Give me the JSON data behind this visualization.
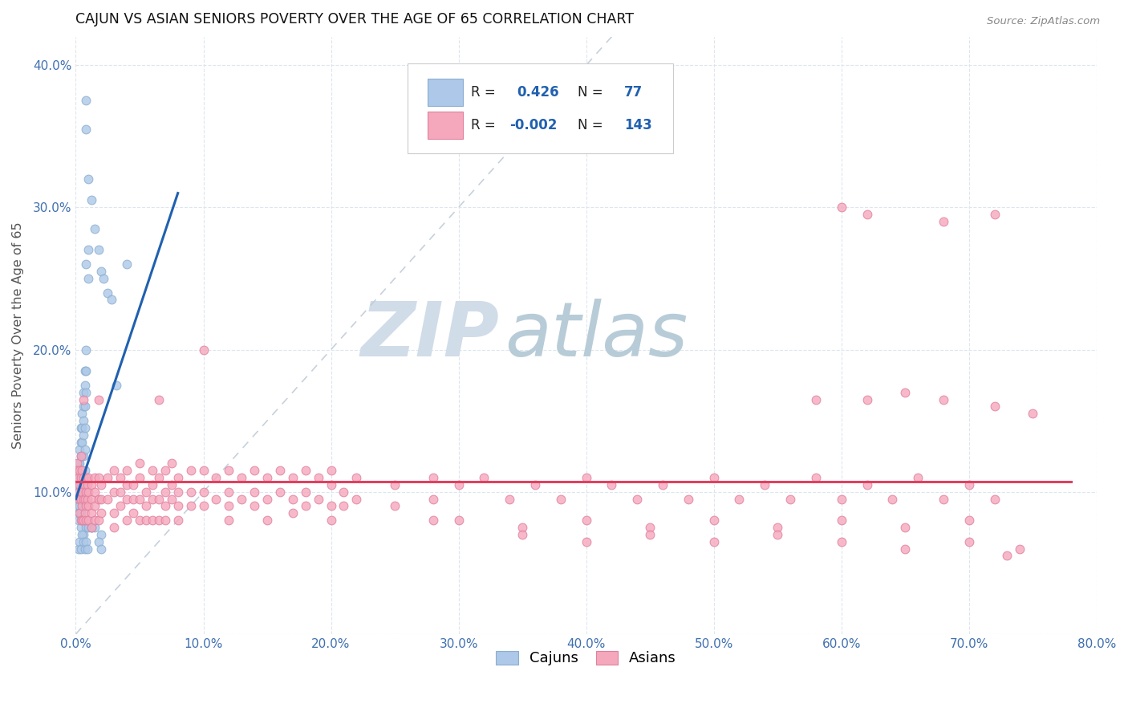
{
  "title": "CAJUN VS ASIAN SENIORS POVERTY OVER THE AGE OF 65 CORRELATION CHART",
  "source": "Source: ZipAtlas.com",
  "ylabel": "Seniors Poverty Over the Age of 65",
  "xlim": [
    0.0,
    0.8
  ],
  "ylim": [
    0.0,
    0.42
  ],
  "xticks": [
    0.0,
    0.1,
    0.2,
    0.3,
    0.4,
    0.5,
    0.6,
    0.7,
    0.8
  ],
  "yticks": [
    0.0,
    0.1,
    0.2,
    0.3,
    0.4
  ],
  "ytick_labels": [
    "",
    "10.0%",
    "20.0%",
    "30.0%",
    "40.0%"
  ],
  "xtick_labels": [
    "0.0%",
    "10.0%",
    "20.0%",
    "30.0%",
    "40.0%",
    "50.0%",
    "60.0%",
    "70.0%",
    "80.0%"
  ],
  "cajun_color": "#adc8e8",
  "asian_color": "#f5a8bc",
  "cajun_line_color": "#2060b0",
  "asian_line_color": "#e04060",
  "diagonal_color": "#c0ccd8",
  "background_color": "#ffffff",
  "grid_color": "#dde6ee",
  "tick_color": "#4070b0",
  "cajun_scatter": [
    [
      0.001,
      0.115
    ],
    [
      0.001,
      0.105
    ],
    [
      0.001,
      0.095
    ],
    [
      0.001,
      0.09
    ],
    [
      0.002,
      0.12
    ],
    [
      0.002,
      0.105
    ],
    [
      0.002,
      0.1
    ],
    [
      0.002,
      0.095
    ],
    [
      0.002,
      0.085
    ],
    [
      0.002,
      0.08
    ],
    [
      0.003,
      0.13
    ],
    [
      0.003,
      0.12
    ],
    [
      0.003,
      0.115
    ],
    [
      0.003,
      0.11
    ],
    [
      0.003,
      0.1
    ],
    [
      0.003,
      0.095
    ],
    [
      0.003,
      0.09
    ],
    [
      0.003,
      0.085
    ],
    [
      0.004,
      0.145
    ],
    [
      0.004,
      0.135
    ],
    [
      0.004,
      0.125
    ],
    [
      0.004,
      0.115
    ],
    [
      0.004,
      0.105
    ],
    [
      0.004,
      0.095
    ],
    [
      0.004,
      0.085
    ],
    [
      0.004,
      0.075
    ],
    [
      0.005,
      0.155
    ],
    [
      0.005,
      0.145
    ],
    [
      0.005,
      0.135
    ],
    [
      0.005,
      0.125
    ],
    [
      0.005,
      0.115
    ],
    [
      0.005,
      0.105
    ],
    [
      0.005,
      0.095
    ],
    [
      0.005,
      0.08
    ],
    [
      0.006,
      0.17
    ],
    [
      0.006,
      0.16
    ],
    [
      0.006,
      0.15
    ],
    [
      0.006,
      0.14
    ],
    [
      0.006,
      0.125
    ],
    [
      0.006,
      0.11
    ],
    [
      0.006,
      0.07
    ],
    [
      0.007,
      0.185
    ],
    [
      0.007,
      0.175
    ],
    [
      0.007,
      0.16
    ],
    [
      0.007,
      0.145
    ],
    [
      0.007,
      0.13
    ],
    [
      0.007,
      0.115
    ],
    [
      0.008,
      0.375
    ],
    [
      0.008,
      0.355
    ],
    [
      0.008,
      0.26
    ],
    [
      0.008,
      0.2
    ],
    [
      0.008,
      0.185
    ],
    [
      0.008,
      0.17
    ],
    [
      0.008,
      0.075
    ],
    [
      0.01,
      0.32
    ],
    [
      0.01,
      0.27
    ],
    [
      0.01,
      0.25
    ],
    [
      0.012,
      0.305
    ],
    [
      0.012,
      0.075
    ],
    [
      0.015,
      0.285
    ],
    [
      0.018,
      0.27
    ],
    [
      0.02,
      0.255
    ],
    [
      0.02,
      0.07
    ],
    [
      0.022,
      0.25
    ],
    [
      0.025,
      0.24
    ],
    [
      0.028,
      0.235
    ],
    [
      0.032,
      0.175
    ],
    [
      0.04,
      0.26
    ],
    [
      0.002,
      0.06
    ],
    [
      0.003,
      0.065
    ],
    [
      0.004,
      0.06
    ],
    [
      0.005,
      0.07
    ],
    [
      0.006,
      0.065
    ],
    [
      0.007,
      0.06
    ],
    [
      0.008,
      0.065
    ],
    [
      0.009,
      0.06
    ],
    [
      0.01,
      0.075
    ],
    [
      0.012,
      0.075
    ],
    [
      0.015,
      0.075
    ],
    [
      0.018,
      0.065
    ],
    [
      0.02,
      0.06
    ]
  ],
  "asian_scatter": [
    [
      0.001,
      0.12
    ],
    [
      0.001,
      0.115
    ],
    [
      0.002,
      0.11
    ],
    [
      0.002,
      0.1
    ],
    [
      0.003,
      0.115
    ],
    [
      0.003,
      0.105
    ],
    [
      0.003,
      0.095
    ],
    [
      0.003,
      0.085
    ],
    [
      0.004,
      0.125
    ],
    [
      0.004,
      0.11
    ],
    [
      0.004,
      0.095
    ],
    [
      0.004,
      0.08
    ],
    [
      0.005,
      0.115
    ],
    [
      0.005,
      0.1
    ],
    [
      0.005,
      0.09
    ],
    [
      0.005,
      0.08
    ],
    [
      0.006,
      0.165
    ],
    [
      0.006,
      0.11
    ],
    [
      0.006,
      0.095
    ],
    [
      0.006,
      0.08
    ],
    [
      0.007,
      0.105
    ],
    [
      0.007,
      0.095
    ],
    [
      0.007,
      0.085
    ],
    [
      0.008,
      0.11
    ],
    [
      0.008,
      0.1
    ],
    [
      0.008,
      0.09
    ],
    [
      0.008,
      0.08
    ],
    [
      0.009,
      0.105
    ],
    [
      0.009,
      0.095
    ],
    [
      0.01,
      0.11
    ],
    [
      0.01,
      0.1
    ],
    [
      0.01,
      0.09
    ],
    [
      0.01,
      0.08
    ],
    [
      0.012,
      0.105
    ],
    [
      0.012,
      0.095
    ],
    [
      0.012,
      0.085
    ],
    [
      0.012,
      0.075
    ],
    [
      0.015,
      0.11
    ],
    [
      0.015,
      0.1
    ],
    [
      0.015,
      0.09
    ],
    [
      0.015,
      0.08
    ],
    [
      0.018,
      0.165
    ],
    [
      0.018,
      0.11
    ],
    [
      0.018,
      0.095
    ],
    [
      0.018,
      0.08
    ],
    [
      0.02,
      0.105
    ],
    [
      0.02,
      0.095
    ],
    [
      0.02,
      0.085
    ],
    [
      0.025,
      0.11
    ],
    [
      0.025,
      0.095
    ],
    [
      0.03,
      0.115
    ],
    [
      0.03,
      0.1
    ],
    [
      0.03,
      0.085
    ],
    [
      0.03,
      0.075
    ],
    [
      0.035,
      0.11
    ],
    [
      0.035,
      0.1
    ],
    [
      0.035,
      0.09
    ],
    [
      0.04,
      0.115
    ],
    [
      0.04,
      0.105
    ],
    [
      0.04,
      0.095
    ],
    [
      0.04,
      0.08
    ],
    [
      0.045,
      0.105
    ],
    [
      0.045,
      0.095
    ],
    [
      0.045,
      0.085
    ],
    [
      0.05,
      0.12
    ],
    [
      0.05,
      0.11
    ],
    [
      0.05,
      0.095
    ],
    [
      0.05,
      0.08
    ],
    [
      0.055,
      0.1
    ],
    [
      0.055,
      0.09
    ],
    [
      0.055,
      0.08
    ],
    [
      0.06,
      0.115
    ],
    [
      0.06,
      0.105
    ],
    [
      0.06,
      0.095
    ],
    [
      0.06,
      0.08
    ],
    [
      0.065,
      0.165
    ],
    [
      0.065,
      0.11
    ],
    [
      0.065,
      0.095
    ],
    [
      0.065,
      0.08
    ],
    [
      0.07,
      0.115
    ],
    [
      0.07,
      0.1
    ],
    [
      0.07,
      0.09
    ],
    [
      0.07,
      0.08
    ],
    [
      0.075,
      0.12
    ],
    [
      0.075,
      0.105
    ],
    [
      0.075,
      0.095
    ],
    [
      0.08,
      0.11
    ],
    [
      0.08,
      0.1
    ],
    [
      0.08,
      0.09
    ],
    [
      0.08,
      0.08
    ],
    [
      0.09,
      0.115
    ],
    [
      0.09,
      0.1
    ],
    [
      0.09,
      0.09
    ],
    [
      0.1,
      0.2
    ],
    [
      0.1,
      0.115
    ],
    [
      0.1,
      0.1
    ],
    [
      0.1,
      0.09
    ],
    [
      0.11,
      0.11
    ],
    [
      0.11,
      0.095
    ],
    [
      0.12,
      0.115
    ],
    [
      0.12,
      0.1
    ],
    [
      0.12,
      0.09
    ],
    [
      0.12,
      0.08
    ],
    [
      0.13,
      0.11
    ],
    [
      0.13,
      0.095
    ],
    [
      0.14,
      0.115
    ],
    [
      0.14,
      0.1
    ],
    [
      0.14,
      0.09
    ],
    [
      0.15,
      0.11
    ],
    [
      0.15,
      0.095
    ],
    [
      0.15,
      0.08
    ],
    [
      0.16,
      0.115
    ],
    [
      0.16,
      0.1
    ],
    [
      0.17,
      0.11
    ],
    [
      0.17,
      0.095
    ],
    [
      0.17,
      0.085
    ],
    [
      0.18,
      0.115
    ],
    [
      0.18,
      0.1
    ],
    [
      0.18,
      0.09
    ],
    [
      0.19,
      0.11
    ],
    [
      0.19,
      0.095
    ],
    [
      0.2,
      0.115
    ],
    [
      0.2,
      0.105
    ],
    [
      0.2,
      0.09
    ],
    [
      0.2,
      0.08
    ],
    [
      0.21,
      0.1
    ],
    [
      0.21,
      0.09
    ],
    [
      0.22,
      0.11
    ],
    [
      0.22,
      0.095
    ],
    [
      0.25,
      0.105
    ],
    [
      0.25,
      0.09
    ],
    [
      0.28,
      0.11
    ],
    [
      0.28,
      0.095
    ],
    [
      0.28,
      0.08
    ],
    [
      0.6,
      0.3
    ],
    [
      0.68,
      0.29
    ],
    [
      0.72,
      0.295
    ],
    [
      0.62,
      0.295
    ],
    [
      0.58,
      0.165
    ],
    [
      0.62,
      0.165
    ],
    [
      0.65,
      0.17
    ],
    [
      0.68,
      0.165
    ],
    [
      0.72,
      0.16
    ],
    [
      0.75,
      0.155
    ],
    [
      0.3,
      0.105
    ],
    [
      0.32,
      0.11
    ],
    [
      0.34,
      0.095
    ],
    [
      0.36,
      0.105
    ],
    [
      0.38,
      0.095
    ],
    [
      0.4,
      0.11
    ],
    [
      0.42,
      0.105
    ],
    [
      0.44,
      0.095
    ],
    [
      0.46,
      0.105
    ],
    [
      0.48,
      0.095
    ],
    [
      0.5,
      0.11
    ],
    [
      0.52,
      0.095
    ],
    [
      0.54,
      0.105
    ],
    [
      0.56,
      0.095
    ],
    [
      0.58,
      0.11
    ],
    [
      0.6,
      0.095
    ],
    [
      0.62,
      0.105
    ],
    [
      0.64,
      0.095
    ],
    [
      0.66,
      0.11
    ],
    [
      0.68,
      0.095
    ],
    [
      0.7,
      0.105
    ],
    [
      0.72,
      0.095
    ],
    [
      0.74,
      0.06
    ],
    [
      0.3,
      0.08
    ],
    [
      0.35,
      0.075
    ],
    [
      0.4,
      0.08
    ],
    [
      0.45,
      0.075
    ],
    [
      0.5,
      0.08
    ],
    [
      0.55,
      0.075
    ],
    [
      0.6,
      0.08
    ],
    [
      0.65,
      0.075
    ],
    [
      0.7,
      0.08
    ],
    [
      0.35,
      0.07
    ],
    [
      0.4,
      0.065
    ],
    [
      0.45,
      0.07
    ],
    [
      0.5,
      0.065
    ],
    [
      0.55,
      0.07
    ],
    [
      0.6,
      0.065
    ],
    [
      0.65,
      0.06
    ],
    [
      0.7,
      0.065
    ],
    [
      0.73,
      0.055
    ]
  ]
}
